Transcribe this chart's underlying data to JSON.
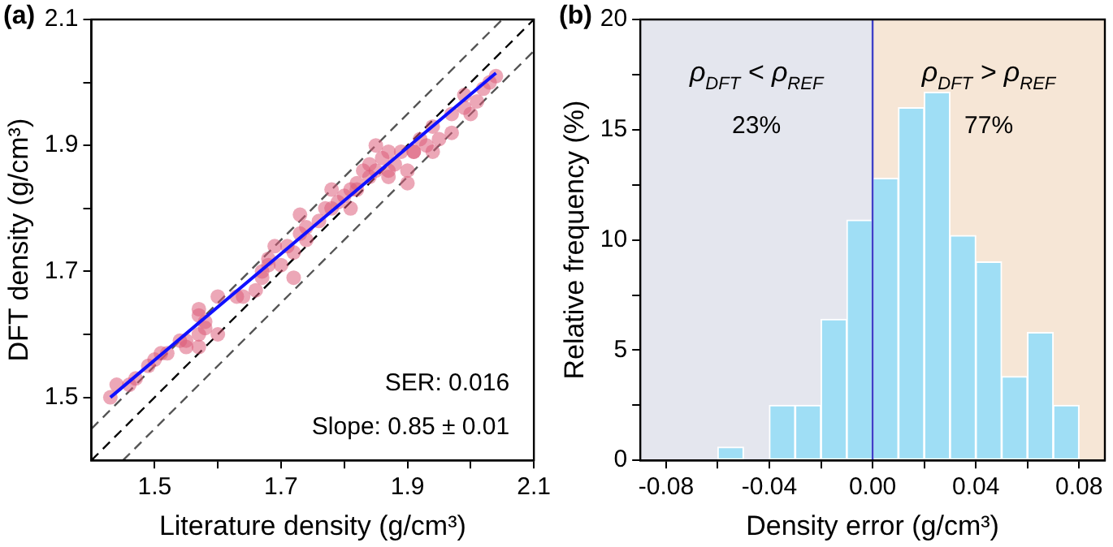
{
  "chart_data": [
    {
      "type": "scatter",
      "title": "(a)",
      "xlabel": "Literature density (g/cm³)",
      "ylabel": "DFT density (g/cm³)",
      "xlim": [
        1.4,
        2.1
      ],
      "ylim": [
        1.4,
        2.1
      ],
      "xticks": [
        1.5,
        {
          "value": 1.6,
          "label": null
        },
        1.7,
        {
          "value": 1.8,
          "label": null
        },
        1.9,
        {
          "value": 2.0,
          "label": null
        },
        2.1
      ],
      "yticks": [
        1.5,
        {
          "value": 1.6,
          "label": null
        },
        1.7,
        {
          "value": 1.8,
          "label": null
        },
        1.9,
        {
          "value": 2.0,
          "label": null
        },
        2.1
      ],
      "grid": false,
      "legend": false,
      "annotations": [
        "SER: 0.016",
        "Slope: 0.85 ± 0.01"
      ],
      "series": [
        {
          "type": "line",
          "color": "#555555",
          "line_style": "dashed",
          "marker": "none",
          "x": [
            1.4,
            2.05
          ],
          "values": [
            1.45,
            2.1
          ]
        },
        {
          "type": "line",
          "color": "#000000",
          "line_style": "dashed",
          "marker": "none",
          "x": [
            1.4,
            2.1
          ],
          "values": [
            1.4,
            2.1
          ]
        },
        {
          "type": "line",
          "color": "#555555",
          "line_style": "dashed",
          "marker": "none",
          "x": [
            1.45,
            2.1
          ],
          "values": [
            1.4,
            2.05
          ]
        },
        {
          "type": "scatter",
          "color": "#dc5a78",
          "marker": "circle",
          "x": [
            1.43,
            1.44,
            1.46,
            1.47,
            1.49,
            1.5,
            1.51,
            1.52,
            1.54,
            1.55,
            1.55,
            1.57,
            1.57,
            1.57,
            1.57,
            1.58,
            1.58,
            1.6,
            1.6,
            1.63,
            1.64,
            1.66,
            1.67,
            1.67,
            1.68,
            1.68,
            1.69,
            1.7,
            1.71,
            1.72,
            1.72,
            1.73,
            1.73,
            1.74,
            1.74,
            1.76,
            1.77,
            1.78,
            1.78,
            1.79,
            1.8,
            1.81,
            1.81,
            1.82,
            1.82,
            1.83,
            1.84,
            1.84,
            1.85,
            1.85,
            1.86,
            1.87,
            1.87,
            1.87,
            1.88,
            1.89,
            1.9,
            1.9,
            1.91,
            1.91,
            1.92,
            1.93,
            1.94,
            1.94,
            1.95,
            1.97,
            1.97,
            1.99,
            1.99,
            2.0,
            2.01,
            2.02,
            2.03,
            2.04
          ],
          "values": [
            1.5,
            1.52,
            1.52,
            1.53,
            1.55,
            1.56,
            1.57,
            1.57,
            1.59,
            1.59,
            1.58,
            1.58,
            1.6,
            1.64,
            1.63,
            1.62,
            1.61,
            1.6,
            1.66,
            1.66,
            1.66,
            1.67,
            1.69,
            1.7,
            1.72,
            1.71,
            1.74,
            1.71,
            1.74,
            1.73,
            1.69,
            1.79,
            1.76,
            1.75,
            1.77,
            1.78,
            1.8,
            1.8,
            1.83,
            1.81,
            1.82,
            1.8,
            1.83,
            1.84,
            1.83,
            1.86,
            1.85,
            1.87,
            1.9,
            1.86,
            1.88,
            1.86,
            1.85,
            1.89,
            1.87,
            1.89,
            1.86,
            1.84,
            1.89,
            1.89,
            1.91,
            1.9,
            1.89,
            1.93,
            1.91,
            1.95,
            1.92,
            1.96,
            1.98,
            1.95,
            1.97,
            1.99,
            2.0,
            2.01
          ]
        },
        {
          "type": "line",
          "color": "#1010ff",
          "marker": "none",
          "x": [
            1.43,
            2.04
          ],
          "values": [
            1.5,
            2.015
          ]
        }
      ]
    },
    {
      "type": "histogram",
      "title": "(b)",
      "xlabel": "Density error (g/cm³)",
      "ylabel": "Relative frequency (%)",
      "xlim": [
        -0.09,
        0.09
      ],
      "ylim": [
        0,
        20
      ],
      "xticks": [
        -0.08,
        {
          "value": -0.06,
          "label": null
        },
        -0.04,
        {
          "value": -0.02,
          "label": null
        },
        {
          "value": 0,
          "label": "0.00"
        },
        {
          "value": 0.02,
          "label": null
        },
        0.04,
        {
          "value": 0.06,
          "label": null
        },
        0.08
      ],
      "yticks": [
        0,
        {
          "value": 2.5,
          "label": null
        },
        5,
        {
          "value": 7.5,
          "label": null
        },
        10,
        {
          "value": 12.5,
          "label": null
        },
        15,
        {
          "value": 17.5,
          "label": null
        },
        20
      ],
      "bins": [
        -0.06,
        -0.05,
        -0.04,
        -0.03,
        -0.02,
        -0.01,
        0,
        0.01,
        0.02,
        0.03,
        0.04,
        0.05,
        0.06,
        0.07,
        0.08
      ],
      "values": [
        0.6,
        0,
        2.5,
        2.5,
        6.4,
        10.9,
        12.8,
        16.0,
        16.7,
        10.2,
        9.0,
        3.8,
        5.8,
        2.5
      ],
      "color": "#9fdef5",
      "grid": false,
      "legend": false,
      "bands": [
        {
          "axis": "x",
          "from": -0.09,
          "to": 0,
          "label": "ρ$_{DFT}$ < ρ$_{REF}$",
          "color": "#e4e6ee"
        },
        {
          "axis": "x",
          "from": 0,
          "to": 0.09,
          "label": "ρ$_{DFT}$ > ρ$_{REF}$",
          "color": "#f6e6d6"
        }
      ],
      "ref_lines": [
        {
          "axis": "x",
          "value": 0,
          "color": "#4040c8"
        }
      ],
      "annotations": [
        "23%",
        "77%"
      ]
    }
  ]
}
